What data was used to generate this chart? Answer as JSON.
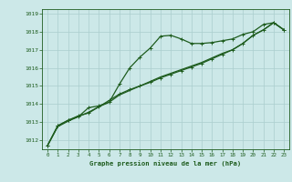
{
  "x": [
    0,
    1,
    2,
    3,
    4,
    5,
    6,
    7,
    8,
    9,
    10,
    11,
    12,
    13,
    14,
    15,
    16,
    17,
    18,
    19,
    20,
    21,
    22,
    23
  ],
  "line1": [
    1011.7,
    1012.8,
    1013.1,
    1013.3,
    1013.8,
    1013.9,
    1014.1,
    1015.1,
    1016.0,
    1016.6,
    1017.1,
    1017.75,
    1017.8,
    1017.6,
    1017.35,
    1017.35,
    1017.4,
    1017.5,
    1017.6,
    1017.85,
    1018.0,
    1018.4,
    1018.5,
    1018.1
  ],
  "line2": [
    1011.7,
    1012.8,
    1013.1,
    1013.35,
    1013.5,
    1013.85,
    1014.2,
    1014.55,
    1014.8,
    1015.0,
    1015.2,
    1015.45,
    1015.65,
    1015.85,
    1016.05,
    1016.25,
    1016.5,
    1016.75,
    1017.0,
    1017.35,
    1017.8,
    1018.1,
    1018.5,
    1018.1
  ],
  "line3": [
    1011.7,
    1012.75,
    1013.05,
    1013.3,
    1013.55,
    1013.85,
    1014.1,
    1014.5,
    1014.75,
    1015.0,
    1015.25,
    1015.5,
    1015.7,
    1015.9,
    1016.1,
    1016.3,
    1016.55,
    1016.8,
    1017.0,
    1017.35,
    1017.8,
    1018.1,
    1018.5,
    1018.1
  ],
  "ylim": [
    1011.5,
    1019.25
  ],
  "yticks": [
    1012,
    1013,
    1014,
    1015,
    1016,
    1017,
    1018,
    1019
  ],
  "xticks": [
    0,
    1,
    2,
    3,
    4,
    5,
    6,
    7,
    8,
    9,
    10,
    11,
    12,
    13,
    14,
    15,
    16,
    17,
    18,
    19,
    20,
    21,
    22,
    23
  ],
  "xlabel": "Graphe pression niveau de la mer (hPa)",
  "bg_color": "#cce8e8",
  "line_color": "#1e5c1e",
  "grid_color": "#aacece",
  "marker": "+",
  "marker_size": 3.5,
  "line_width": 0.9
}
